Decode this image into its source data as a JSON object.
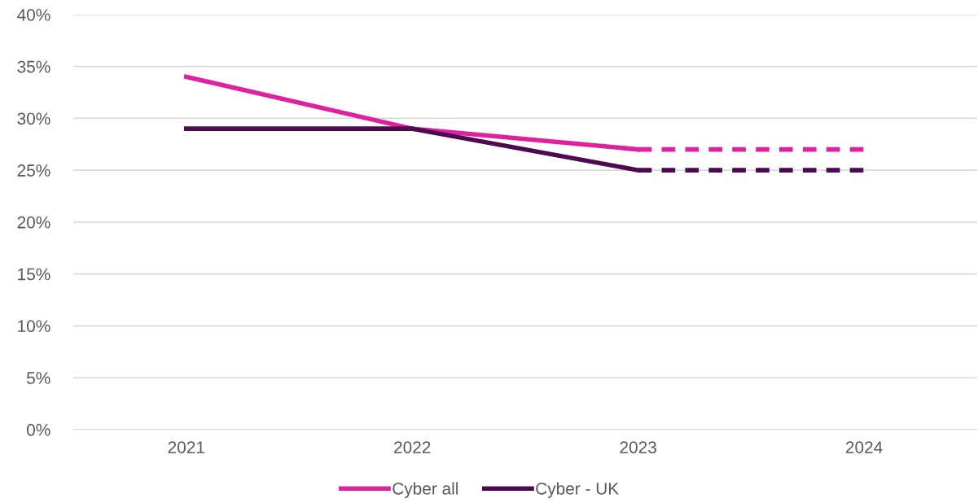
{
  "chart_data": {
    "type": "line",
    "categories": [
      "2021",
      "2022",
      "2023",
      "2024"
    ],
    "series": [
      {
        "name": "Cyber all",
        "color": "#e0209f",
        "values": [
          34,
          29,
          27,
          null
        ],
        "line_style": "solid"
      },
      {
        "name": "Cyber - UK",
        "color": "#4e0a50",
        "values": [
          29,
          29,
          25,
          null
        ],
        "line_style": "solid"
      },
      {
        "color": "#e0209f",
        "values": [
          null,
          null,
          27,
          27
        ],
        "line_style": "dashed"
      },
      {
        "color": "#4e0a50",
        "values": [
          null,
          null,
          25,
          25
        ],
        "line_style": "dashed"
      }
    ],
    "ylim": [
      0,
      40
    ],
    "yticks": [
      {
        "value": 0,
        "label": "0%"
      },
      {
        "value": 5,
        "label": "5%"
      },
      {
        "value": 10,
        "label": "10%"
      },
      {
        "value": 15,
        "label": "15%"
      },
      {
        "value": 20,
        "label": "20%"
      },
      {
        "value": 25,
        "label": "25%"
      },
      {
        "value": 30,
        "label": "30%"
      },
      {
        "value": 35,
        "label": "35%"
      },
      {
        "value": 40,
        "label": "40%"
      }
    ],
    "grid": "y",
    "legend": "bottom",
    "marker": "none"
  }
}
